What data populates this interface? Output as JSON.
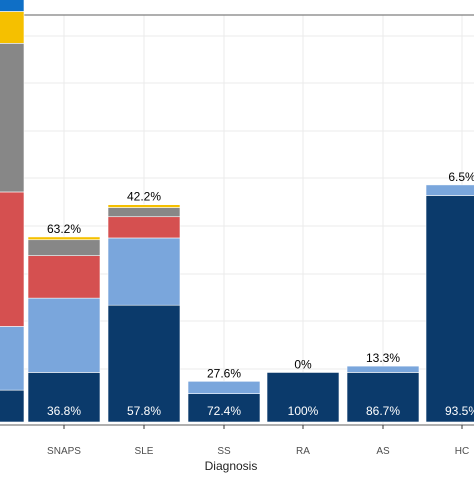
{
  "colors": {
    "panel_border": "#7f7f7f",
    "grid": "#ebebeb",
    "axis_text": "#4d4d4d",
    "label_text": "#000000",
    "inner_label_text": "#ffffff"
  },
  "chart_data": {
    "type": "bar",
    "stacked": true,
    "xlabel": "Diagnosis",
    "ylabel": "",
    "title": "",
    "grid": true,
    "categories": [
      "",
      "SNAPS",
      "SLE",
      "SS",
      "RA",
      "AS",
      "HC"
    ],
    "top_labels": [
      "",
      "63.2%",
      "42.2%",
      "27.6%",
      "0%",
      "13.3%",
      "6.5%"
    ],
    "bottom_labels": [
      "",
      "36.8%",
      "57.8%",
      "72.4%",
      "100%",
      "86.7%",
      "93.5%"
    ],
    "top_label_partial": [
      "",
      "",
      "",
      "",
      "",
      "",
      ""
    ],
    "ylim": [
      0,
      11.5
    ],
    "series": [
      {
        "color": "#0b3a6b",
        "values": [
          0.9,
          1.4,
          3.3,
          0.8,
          1.4,
          1.4,
          6.4
        ]
      },
      {
        "color": "#7aa6dc",
        "values": [
          1.8,
          2.1,
          1.9,
          0.35,
          0,
          0.18,
          0.3
        ]
      },
      {
        "color": "#d55050",
        "values": [
          3.8,
          1.2,
          0.6,
          0,
          0,
          0,
          0
        ]
      },
      {
        "color": "#878787",
        "values": [
          4.2,
          0.45,
          0.26,
          0,
          0,
          0,
          0
        ]
      },
      {
        "color": "#f5c000",
        "values": [
          0.9,
          0.08,
          0.08,
          0,
          0,
          0,
          0
        ]
      },
      {
        "color": "#0f6fc6",
        "values": [
          0.4,
          0,
          0,
          0,
          0,
          0,
          0
        ]
      }
    ]
  }
}
